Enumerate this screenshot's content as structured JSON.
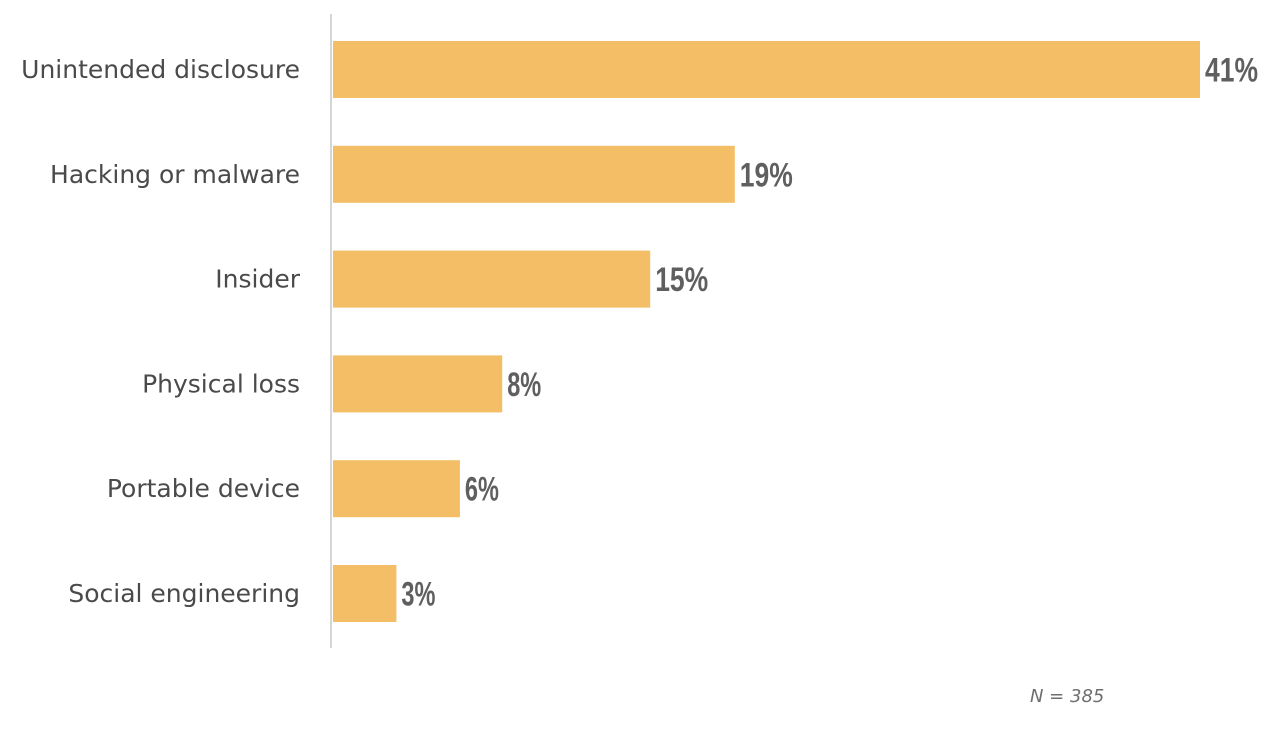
{
  "chart_data": {
    "type": "bar",
    "orientation": "horizontal",
    "categories": [
      "Unintended disclosure",
      "Hacking or malware",
      "Insider",
      "Physical loss",
      "Portable device",
      "Social engineering"
    ],
    "values": [
      41,
      19,
      15,
      8,
      6,
      3
    ],
    "value_labels": [
      "41%",
      "19%",
      "15%",
      "8%",
      "6%",
      "3%"
    ],
    "unit": "%",
    "xlim": [
      0,
      41
    ],
    "grid": false,
    "legend": "none",
    "bar_color": "#F3BE65",
    "note": "N = 385"
  }
}
